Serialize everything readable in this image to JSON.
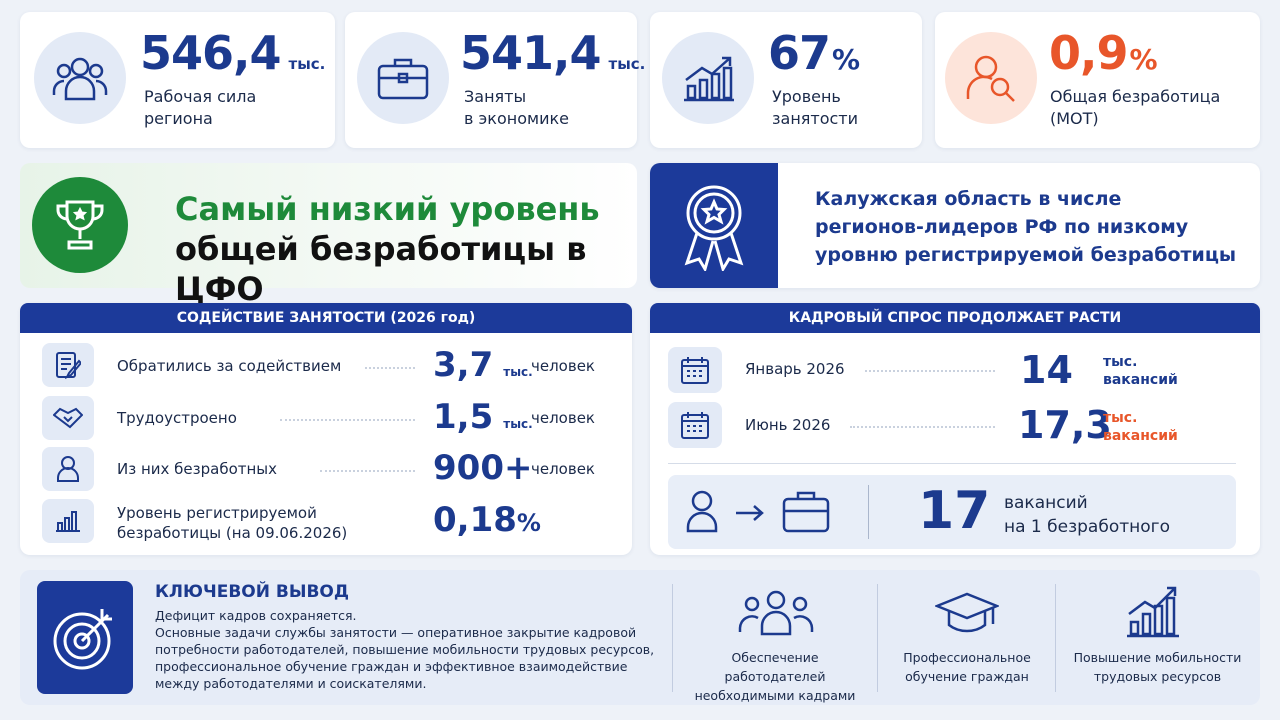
{
  "stats": [
    {
      "value": "546,4",
      "unit": "тыс.",
      "caption": [
        "Рабочая сила",
        "региона"
      ]
    },
    {
      "value": "541,4",
      "unit": "тыс.",
      "caption": [
        "Заняты",
        "в экономике"
      ]
    },
    {
      "value": "67",
      "unit": "%",
      "caption": [
        "Уровень",
        "занятости"
      ]
    },
    {
      "value": "0,9",
      "unit": "%",
      "caption": [
        "Общая безработица",
        "(МОТ)"
      ]
    }
  ],
  "banner_left": [
    "Самый низкий уровень",
    "общей безработицы в ЦФО"
  ],
  "banner_right": [
    "Калужская область в числе",
    "регионов-лидеров РФ по низкому",
    "уровню регистрируемой безработицы"
  ],
  "assistance": {
    "title": "СОДЕЙСТВИЕ ЗАНЯТОСТИ (2026 год)",
    "rows": [
      {
        "label": [
          "Обратились за содействием"
        ],
        "value": "3,7",
        "unit": "тыс.",
        "suffix": "человек"
      },
      {
        "label": [
          "Трудоустроено"
        ],
        "value": "1,5",
        "unit": "тыс.",
        "suffix": "человек"
      },
      {
        "label": [
          "Из них безработных"
        ],
        "value": "900+",
        "suffix": "человек"
      },
      {
        "label": [
          "Уровень регистрируемой",
          "безработицы (на 09.06.2026)"
        ],
        "value": "0,18",
        "unit": "%"
      }
    ]
  },
  "demand": {
    "title": "КАДРОВЫЙ СПРОС ПРОДОЛЖАЕТ РАСТИ",
    "rows": [
      {
        "label": "Январь 2026",
        "value": "14",
        "unit": "тыс.",
        "suffix": "вакансий"
      },
      {
        "label": "Июнь 2026",
        "value": "17,3",
        "unit": "тыс.",
        "suffix": "вакансий"
      }
    ],
    "ratio": {
      "value": "17",
      "text": [
        "вакансий",
        "на 1 безработного"
      ]
    }
  },
  "conclusion": {
    "title": "КЛЮЧЕВОЙ ВЫВОД",
    "lead": "Дефицит кадров сохраняется.",
    "text": [
      "Основные задачи службы занятости — оперативное закрытие кадровой",
      "потребности работодателей, повышение мобильности трудовых ресурсов,",
      "профессиональное обучение граждан и эффективное взаимодействие",
      "между работодателями и соискателями."
    ],
    "items": [
      [
        "Обеспечение работодателей",
        "необходимыми кадрами"
      ],
      [
        "Профессиональное",
        "обучение граждан"
      ],
      [
        "Повышение мобильности",
        "трудовых ресурсов"
      ]
    ]
  }
}
